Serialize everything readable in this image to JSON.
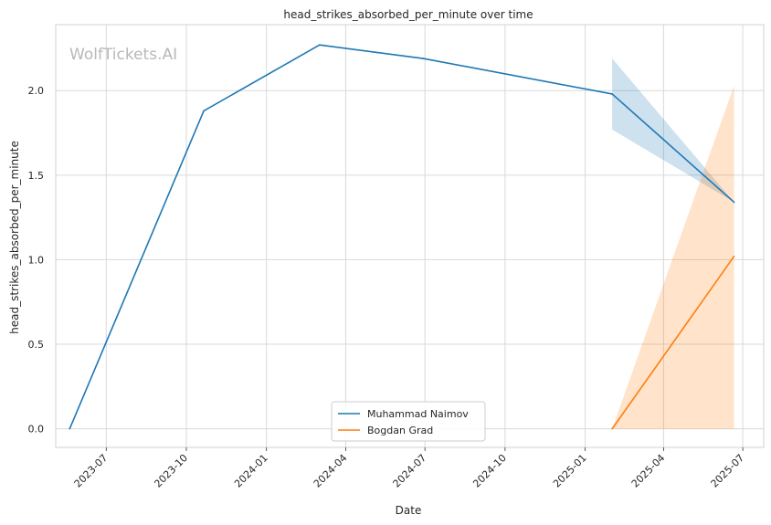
{
  "chart_data": {
    "type": "line",
    "title": "head_strikes_absorbed_per_minute over time",
    "xlabel": "Date",
    "ylabel": "head_strikes_absorbed_per_minute",
    "watermark": "WolfTickets.AI",
    "x_ticks": [
      "2023-07",
      "2023-10",
      "2024-01",
      "2024-04",
      "2024-07",
      "2024-10",
      "2025-01",
      "2025-04",
      "2025-07"
    ],
    "y_ticks": [
      "0.0",
      "0.5",
      "1.0",
      "1.5",
      "2.0"
    ],
    "ylim": [
      -0.11,
      2.39
    ],
    "xlim": [
      "2023-05-04",
      "2025-07-25"
    ],
    "grid": true,
    "legend_position": "lower center",
    "series": [
      {
        "name": "Muhammad Naimov",
        "color": "#1f77b4",
        "points": [
          {
            "date": "2023-05-20",
            "value": 0.0
          },
          {
            "date": "2023-10-21",
            "value": 1.88
          },
          {
            "date": "2024-03-02",
            "value": 2.27
          },
          {
            "date": "2024-06-29",
            "value": 2.19
          },
          {
            "date": "2025-02-01",
            "value": 1.98
          },
          {
            "date": "2025-06-21",
            "value": 1.34
          }
        ],
        "band": [
          {
            "date": "2025-02-01",
            "low": 1.77,
            "high": 2.19
          },
          {
            "date": "2025-06-21",
            "low": 1.34,
            "high": 1.34
          }
        ]
      },
      {
        "name": "Bogdan Grad",
        "color": "#ff7f0e",
        "points": [
          {
            "date": "2025-02-01",
            "value": 0.0
          },
          {
            "date": "2025-06-21",
            "value": 1.02
          }
        ],
        "band": [
          {
            "date": "2025-02-01",
            "low": 0.0,
            "high": 0.0
          },
          {
            "date": "2025-06-21",
            "low": 0.0,
            "high": 2.03
          }
        ]
      }
    ]
  }
}
